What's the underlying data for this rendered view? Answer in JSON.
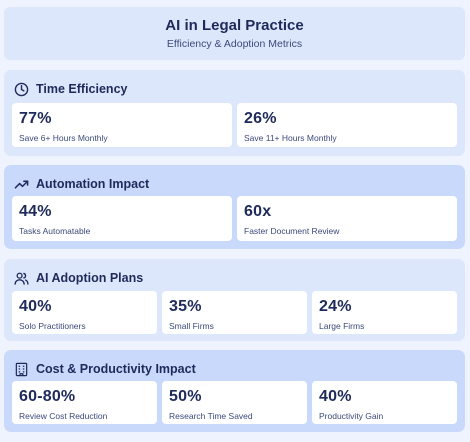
{
  "header": {
    "title": "AI in Legal Practice",
    "subtitle": "Efficiency & Adoption Metrics"
  },
  "sections": [
    {
      "title": "Time Efficiency",
      "icon": "clock-icon",
      "stats": [
        {
          "value": "77%",
          "label": "Save 6+ Hours Monthly"
        },
        {
          "value": "26%",
          "label": "Save 11+ Hours Monthly"
        }
      ]
    },
    {
      "title": "Automation Impact",
      "icon": "trending-up-icon",
      "stats": [
        {
          "value": "44%",
          "label": "Tasks Automatable"
        },
        {
          "value": "60x",
          "label": "Faster Document Review"
        }
      ]
    },
    {
      "title": "AI Adoption Plans",
      "icon": "users-icon",
      "stats": [
        {
          "value": "40%",
          "label": "Solo Practitioners"
        },
        {
          "value": "35%",
          "label": "Small Firms"
        },
        {
          "value": "24%",
          "label": "Large Firms"
        }
      ]
    },
    {
      "title": "Cost & Productivity Impact",
      "icon": "building-icon",
      "stats": [
        {
          "value": "60-80%",
          "label": "Review Cost Reduction"
        },
        {
          "value": "50%",
          "label": "Research Time Saved"
        },
        {
          "value": "40%",
          "label": "Productivity Gain"
        }
      ]
    }
  ]
}
